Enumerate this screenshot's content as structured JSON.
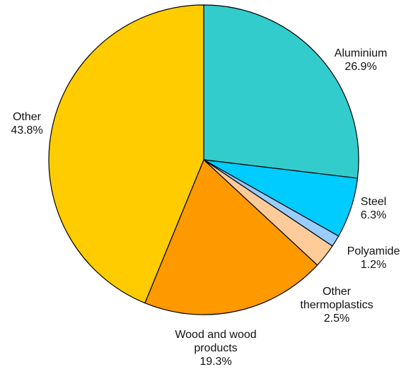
{
  "chart_data": {
    "type": "pie",
    "start_angle_deg": 0,
    "direction": "clockwise",
    "slices": [
      {
        "label": [
          "Aluminium"
        ],
        "value": 26.9,
        "value_label": "26.9%",
        "color": "#33cccc"
      },
      {
        "label": [
          "Steel"
        ],
        "value": 6.3,
        "value_label": "6.3%",
        "color": "#00ccff"
      },
      {
        "label": [
          "Polyamide"
        ],
        "value": 1.2,
        "value_label": "1.2%",
        "color": "#99ccff"
      },
      {
        "label": [
          "Other",
          "thermoplastics"
        ],
        "value": 2.5,
        "value_label": "2.5%",
        "color": "#ffcc99"
      },
      {
        "label": [
          "Wood and wood",
          "products"
        ],
        "value": 19.3,
        "value_label": "19.3%",
        "color": "#ff9900"
      },
      {
        "label": [
          "Other"
        ],
        "value": 43.8,
        "value_label": "43.8%",
        "color": "#ffcc00"
      }
    ]
  }
}
